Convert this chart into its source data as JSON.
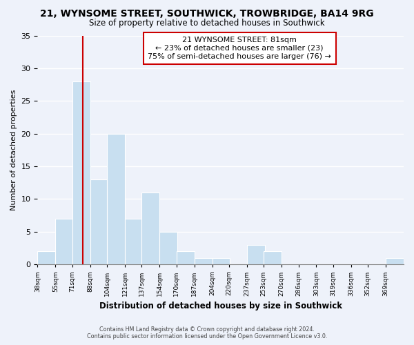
{
  "title": "21, WYNSOME STREET, SOUTHWICK, TROWBRIDGE, BA14 9RG",
  "subtitle": "Size of property relative to detached houses in Southwick",
  "xlabel": "Distribution of detached houses by size in Southwick",
  "ylabel": "Number of detached properties",
  "bin_labels": [
    "38sqm",
    "55sqm",
    "71sqm",
    "88sqm",
    "104sqm",
    "121sqm",
    "137sqm",
    "154sqm",
    "170sqm",
    "187sqm",
    "204sqm",
    "220sqm",
    "237sqm",
    "253sqm",
    "270sqm",
    "286sqm",
    "303sqm",
    "319sqm",
    "336sqm",
    "352sqm",
    "369sqm"
  ],
  "bin_edges": [
    38,
    55,
    71,
    88,
    104,
    121,
    137,
    154,
    170,
    187,
    204,
    220,
    237,
    253,
    270,
    286,
    303,
    319,
    336,
    352,
    369
  ],
  "counts": [
    2,
    7,
    28,
    13,
    20,
    7,
    11,
    5,
    2,
    1,
    1,
    0,
    3,
    2,
    0,
    0,
    0,
    0,
    0,
    0,
    1
  ],
  "bar_color": "#c8dff0",
  "vline_x": 81,
  "vline_color": "#cc0000",
  "annotation_text": "21 WYNSOME STREET: 81sqm\n← 23% of detached houses are smaller (23)\n75% of semi-detached houses are larger (76) →",
  "annotation_bbox_edgecolor": "#cc0000",
  "annotation_bbox_facecolor": "#ffffff",
  "ylim": [
    0,
    35
  ],
  "yticks": [
    0,
    5,
    10,
    15,
    20,
    25,
    30,
    35
  ],
  "footer_line1": "Contains HM Land Registry data © Crown copyright and database right 2024.",
  "footer_line2": "Contains public sector information licensed under the Open Government Licence v3.0.",
  "bg_color": "#eef2fa"
}
